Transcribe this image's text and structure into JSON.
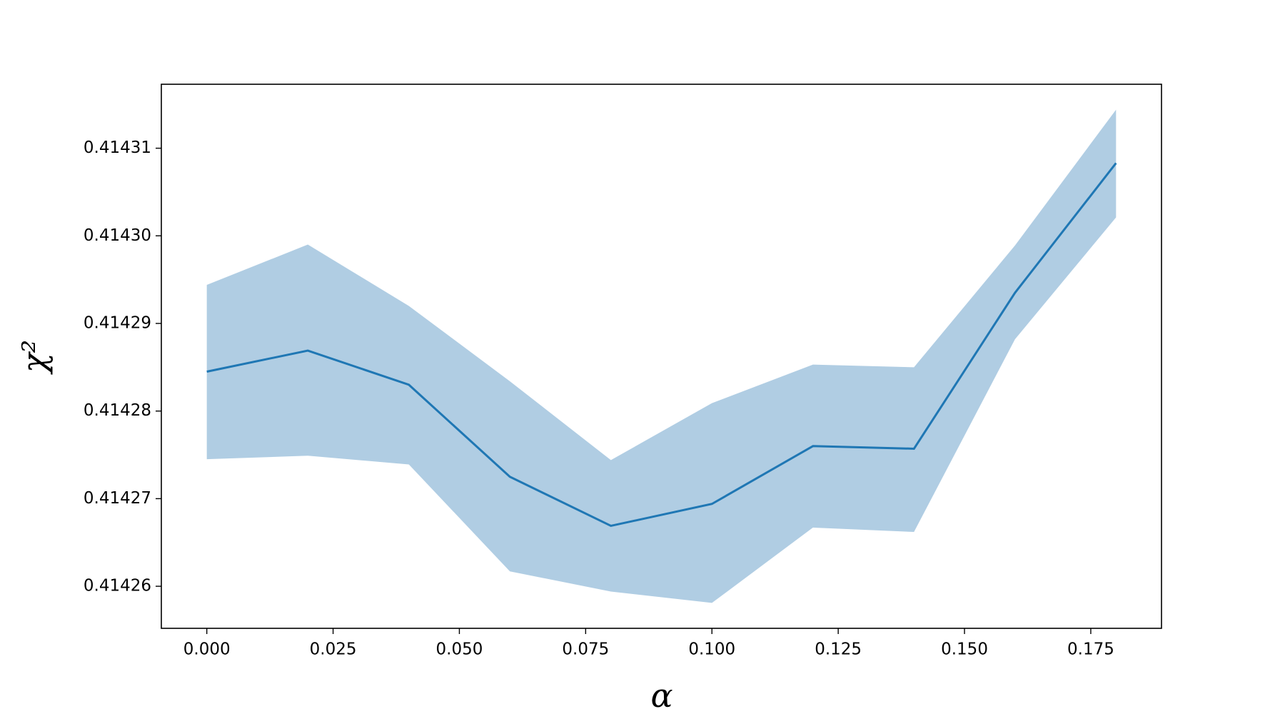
{
  "chart_data": {
    "type": "line",
    "x_label": "α",
    "y_label": "χ²",
    "x": [
      0,
      0.02,
      0.04,
      0.06,
      0.08,
      0.1,
      0.12,
      0.14,
      0.16,
      0.18
    ],
    "values": [
      0.4142845,
      0.4142869,
      0.414283,
      0.4142725,
      0.4142669,
      0.4142694,
      0.414276,
      0.4142757,
      0.4142935,
      0.4143083
    ],
    "band_upper": [
      0.4142944,
      0.414299,
      0.414292,
      0.4142834,
      0.4142744,
      0.4142809,
      0.4142853,
      0.414285,
      0.4142989,
      0.4143144
    ],
    "band_lower": [
      0.4142745,
      0.4142749,
      0.4142739,
      0.4142617,
      0.4142594,
      0.4142581,
      0.4142667,
      0.4142662,
      0.4142882,
      0.4143021
    ],
    "color": "#1f77b4",
    "band_color": "#b0cde3",
    "xlim": [
      -0.009,
      0.189
    ],
    "ylim": [
      0.4142552,
      0.4143173
    ],
    "xticks": [
      {
        "value": 0,
        "label": "0.000"
      },
      {
        "value": 0.025,
        "label": "0.025"
      },
      {
        "value": 0.05,
        "label": "0.050"
      },
      {
        "value": 0.075,
        "label": "0.075"
      },
      {
        "value": 0.1,
        "label": "0.100"
      },
      {
        "value": 0.125,
        "label": "0.125"
      },
      {
        "value": 0.15,
        "label": "0.150"
      },
      {
        "value": 0.175,
        "label": "0.175"
      }
    ],
    "yticks": [
      0.41426,
      0.41427,
      0.41428,
      0.41429,
      {
        "value": 0.4143,
        "label": "0.41430"
      },
      0.41431
    ],
    "grid": false
  }
}
